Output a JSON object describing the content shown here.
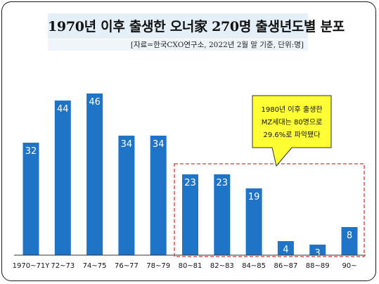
{
  "title": "1970년 이후 출생한 오너家 270명 출생년도별 분포",
  "source": "[자료=한국CXO연구소,  2022년 2월 말 기준, 단위:명]",
  "callout": {
    "lines": [
      "1980년 이후 출생한",
      "MZ세대는 80명으로",
      "29.6%로 파악됐다"
    ],
    "fill": "#ffff33"
  },
  "colors": {
    "bar": "#1f74c8",
    "highlight_border": "#e0352b",
    "title_bg": "#e4eff8"
  },
  "chart_data": {
    "type": "bar",
    "title": "1970년 이후 출생한 오너家 270명 출생년도별 분포",
    "xlabel": "",
    "ylabel": "",
    "categories": [
      "1970~71Y",
      "72~73",
      "74~75",
      "76~77",
      "78~79",
      "80~81",
      "82~83",
      "84~85",
      "86~87",
      "88~89",
      "90~"
    ],
    "values": [
      32,
      44,
      46,
      34,
      34,
      23,
      23,
      19,
      4,
      3,
      8
    ],
    "ylim": [
      0,
      50
    ],
    "grid": false,
    "legend": "none",
    "data_labels": true
  }
}
